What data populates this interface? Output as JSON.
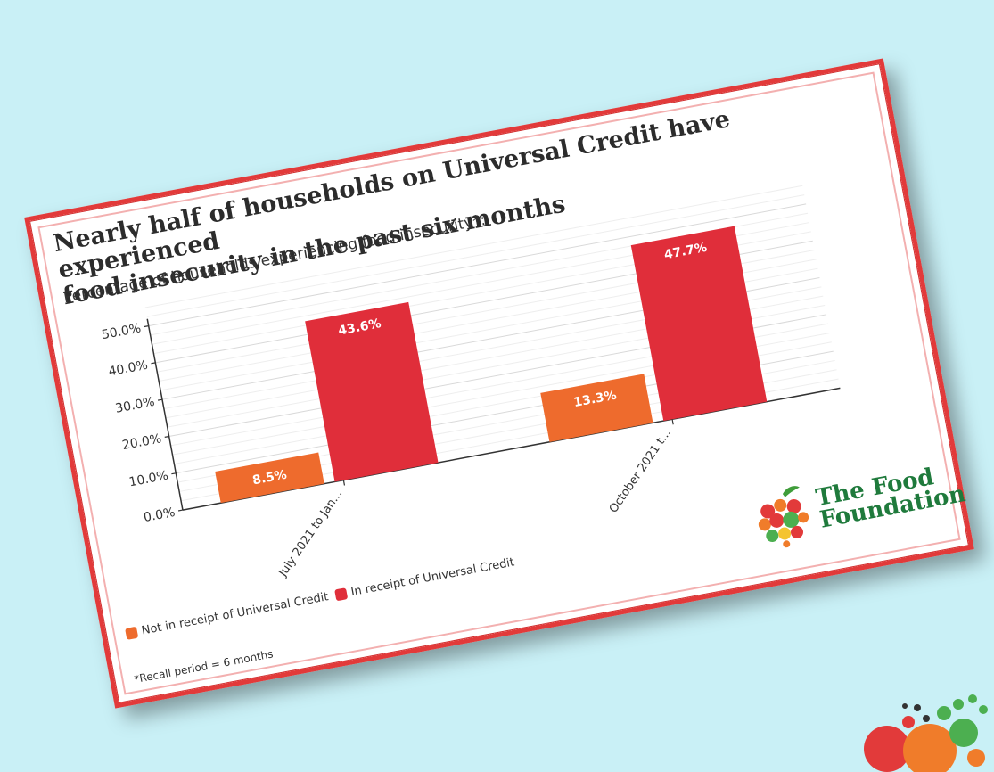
{
  "card": {
    "title_line1": "Nearly half of households on Universal Credit have experienced",
    "title_line2": "food insecurity in the past six months",
    "subtitle": "Percentage of households experiencing food insecurity*:",
    "note": "*Recall period = 6 months"
  },
  "legend": {
    "items": [
      {
        "label": "Not in receipt of Universal Credit",
        "color": "#ee6b2d"
      },
      {
        "label": "In receipt of Universal Credit",
        "color": "#e02e3a"
      }
    ]
  },
  "logo": {
    "line1": "The Food",
    "line2": "Foundation"
  },
  "chart_data": {
    "type": "bar",
    "categories": [
      "July 2021 to Jan...",
      "October 2021 t..."
    ],
    "series": [
      {
        "name": "Not in receipt of Universal Credit",
        "values": [
          8.5,
          13.3
        ],
        "color": "#ee6b2d"
      },
      {
        "name": "In receipt of Universal Credit",
        "values": [
          43.6,
          47.7
        ],
        "color": "#e02e3a"
      }
    ],
    "data_labels": [
      [
        "8.5%",
        "13.3%"
      ],
      [
        "43.6%",
        "47.7%"
      ]
    ],
    "yticks": [
      "0.0%",
      "10.0%",
      "20.0%",
      "30.0%",
      "40.0%",
      "50.0%"
    ],
    "ylim": [
      0,
      50
    ],
    "grid": true,
    "legend": "bottom-left",
    "title": "Nearly half of households on Universal Credit have experienced food insecurity in the past six months",
    "ylabel": "",
    "xlabel": ""
  }
}
